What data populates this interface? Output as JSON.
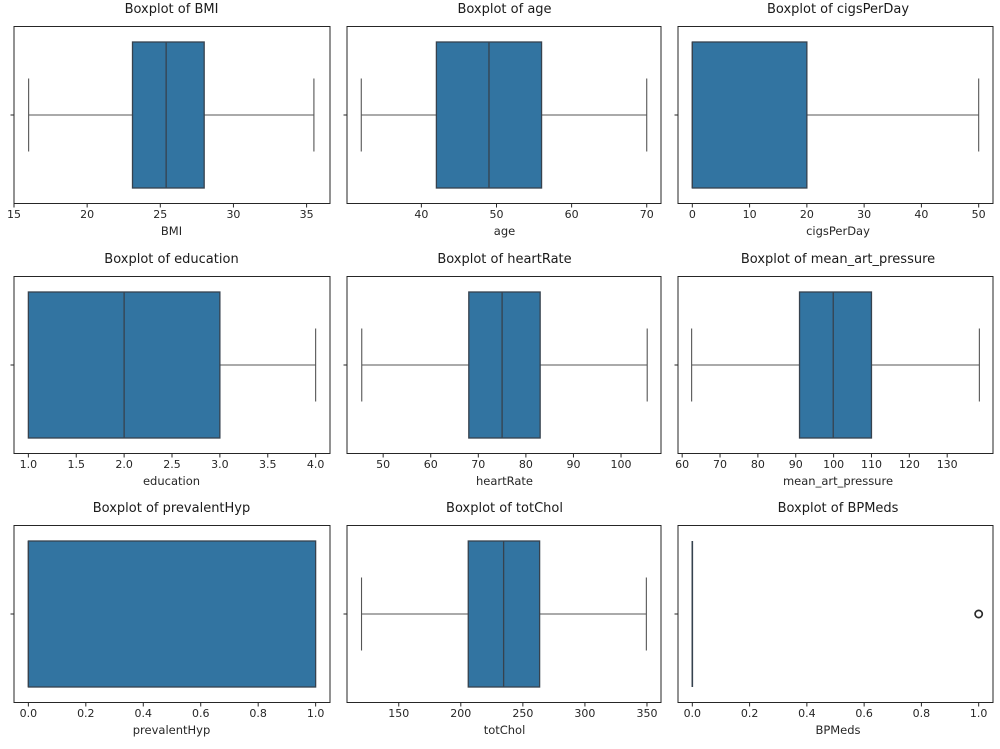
{
  "figure": {
    "background": "#ffffff",
    "grid": "3x3",
    "description": "Grid of nine horizontal boxplots"
  },
  "style": {
    "box_fill": "#3274a1",
    "box_edge": "#36424e",
    "median_line": "#36424e",
    "whisker": "#555555",
    "cap": "#555555",
    "spine": "#262626",
    "tick_text": "#262626",
    "title_text": "#1a1a1a",
    "flier_edge": "#2b2b2b",
    "flier_fill": "#ffffff"
  },
  "chart_data": [
    {
      "type": "boxplot",
      "orientation": "horizontal",
      "grid": false,
      "title": "Boxplot of BMI",
      "xlabel": "BMI",
      "ylabel": "",
      "xlim": [
        15.0,
        36.6
      ],
      "xticks": [
        15,
        20,
        25,
        30,
        35
      ],
      "xtick_labels": [
        "15",
        "20",
        "25",
        "30",
        "35"
      ],
      "stats": {
        "whislo": 16.0,
        "q1": 23.1,
        "med": 25.4,
        "q3": 28.0,
        "whishi": 35.5,
        "fliers": []
      }
    },
    {
      "type": "boxplot",
      "orientation": "horizontal",
      "grid": false,
      "title": "Boxplot of age",
      "xlabel": "age",
      "ylabel": "",
      "xlim": [
        30.1,
        71.9
      ],
      "xticks": [
        40,
        50,
        60,
        70
      ],
      "xtick_labels": [
        "40",
        "50",
        "60",
        "70"
      ],
      "stats": {
        "whislo": 32.0,
        "q1": 42.0,
        "med": 49.0,
        "q3": 56.0,
        "whishi": 70.0,
        "fliers": []
      }
    },
    {
      "type": "boxplot",
      "orientation": "horizontal",
      "grid": false,
      "title": "Boxplot of cigsPerDay",
      "xlabel": "cigsPerDay",
      "ylabel": "",
      "xlim": [
        -2.5,
        52.5
      ],
      "xticks": [
        0,
        10,
        20,
        30,
        40,
        50
      ],
      "xtick_labels": [
        "0",
        "10",
        "20",
        "30",
        "40",
        "50"
      ],
      "stats": {
        "whislo": 0,
        "q1": 0,
        "med": 0,
        "q3": 20,
        "whishi": 50,
        "fliers": []
      }
    },
    {
      "type": "boxplot",
      "orientation": "horizontal",
      "grid": false,
      "title": "Boxplot of education",
      "xlabel": "education",
      "ylabel": "",
      "xlim": [
        0.85,
        4.15
      ],
      "xticks": [
        1.0,
        1.5,
        2.0,
        2.5,
        3.0,
        3.5,
        4.0
      ],
      "xtick_labels": [
        "1.0",
        "1.5",
        "2.0",
        "2.5",
        "3.0",
        "3.5",
        "4.0"
      ],
      "stats": {
        "whislo": 1.0,
        "q1": 1.0,
        "med": 2.0,
        "q3": 3.0,
        "whishi": 4.0,
        "fliers": []
      }
    },
    {
      "type": "boxplot",
      "orientation": "horizontal",
      "grid": false,
      "title": "Boxplot of heartRate",
      "xlabel": "heartRate",
      "ylabel": "",
      "xlim": [
        42.4,
        108.4
      ],
      "xticks": [
        50,
        60,
        70,
        80,
        90,
        100
      ],
      "xtick_labels": [
        "50",
        "60",
        "70",
        "80",
        "90",
        "100"
      ],
      "stats": {
        "whislo": 45.5,
        "q1": 68.0,
        "med": 75.0,
        "q3": 83.0,
        "whishi": 105.5,
        "fliers": []
      }
    },
    {
      "type": "boxplot",
      "orientation": "horizontal",
      "grid": false,
      "title": "Boxplot of mean_art_pressure",
      "xlabel": "mean_art_pressure",
      "ylabel": "",
      "xlim": [
        58.9,
        142.1
      ],
      "xticks": [
        60,
        70,
        80,
        90,
        100,
        110,
        120,
        130
      ],
      "xtick_labels": [
        "60",
        "70",
        "80",
        "90",
        "100",
        "110",
        "120",
        "130"
      ],
      "stats": {
        "whislo": 62.5,
        "q1": 91.0,
        "med": 99.9,
        "q3": 110.0,
        "whishi": 138.5,
        "fliers": []
      }
    },
    {
      "type": "boxplot",
      "orientation": "horizontal",
      "grid": false,
      "title": "Boxplot of prevalentHyp",
      "xlabel": "prevalentHyp",
      "ylabel": "",
      "xlim": [
        -0.05,
        1.05
      ],
      "xticks": [
        0.0,
        0.2,
        0.4,
        0.6,
        0.8,
        1.0
      ],
      "xtick_labels": [
        "0.0",
        "0.2",
        "0.4",
        "0.6",
        "0.8",
        "1.0"
      ],
      "stats": {
        "whislo": 0.0,
        "q1": 0.0,
        "med": 0.0,
        "q3": 1.0,
        "whishi": 1.0,
        "fliers": []
      }
    },
    {
      "type": "boxplot",
      "orientation": "horizontal",
      "grid": false,
      "title": "Boxplot of totChol",
      "xlabel": "totChol",
      "ylabel": "",
      "xlim": [
        108.3,
        361.3
      ],
      "xticks": [
        150,
        200,
        250,
        300,
        350
      ],
      "xtick_labels": [
        "150",
        "200",
        "250",
        "300",
        "350"
      ],
      "stats": {
        "whislo": 120.0,
        "q1": 206.0,
        "med": 234.5,
        "q3": 263.5,
        "whishi": 349.5,
        "fliers": []
      }
    },
    {
      "type": "boxplot",
      "orientation": "horizontal",
      "grid": false,
      "title": "Boxplot of BPMeds",
      "xlabel": "BPMeds",
      "ylabel": "",
      "xlim": [
        -0.05,
        1.05
      ],
      "xticks": [
        0.0,
        0.2,
        0.4,
        0.6,
        0.8,
        1.0
      ],
      "xtick_labels": [
        "0.0",
        "0.2",
        "0.4",
        "0.6",
        "0.8",
        "1.0"
      ],
      "stats": {
        "whislo": 0.0,
        "q1": 0.0,
        "med": 0.0,
        "q3": 0.0,
        "whishi": 0.0,
        "fliers": [
          1.0
        ]
      }
    }
  ]
}
